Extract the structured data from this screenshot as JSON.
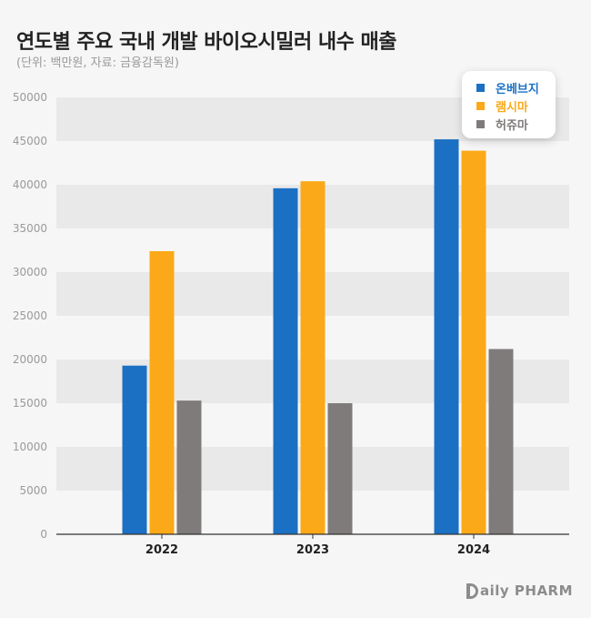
{
  "title": "연도별 주요 국내 개발 바이오시밀러 내수 매출",
  "subtitle": "(단위: 백만원, 자료: 금융감독원)",
  "brand": "aily PHARM",
  "chart_data": {
    "type": "bar",
    "categories": [
      "2022",
      "2023",
      "2024"
    ],
    "series": [
      {
        "name": "온베브지",
        "color": "#1b70c4",
        "values": [
          19300,
          39600,
          45200
        ]
      },
      {
        "name": "램시마",
        "color": "#fba919",
        "values": [
          32400,
          40400,
          43900
        ]
      },
      {
        "name": "허쥬마",
        "color": "#7f7b7b",
        "values": [
          15300,
          15000,
          21200
        ]
      }
    ],
    "yticks": [
      "0",
      "5000",
      "10000",
      "15000",
      "20000",
      "25000",
      "30000",
      "35000",
      "40000",
      "45000",
      "50000"
    ],
    "ylim": [
      0,
      50000
    ],
    "grid": "alternating horizontal bands",
    "legend_position": "top-right"
  }
}
